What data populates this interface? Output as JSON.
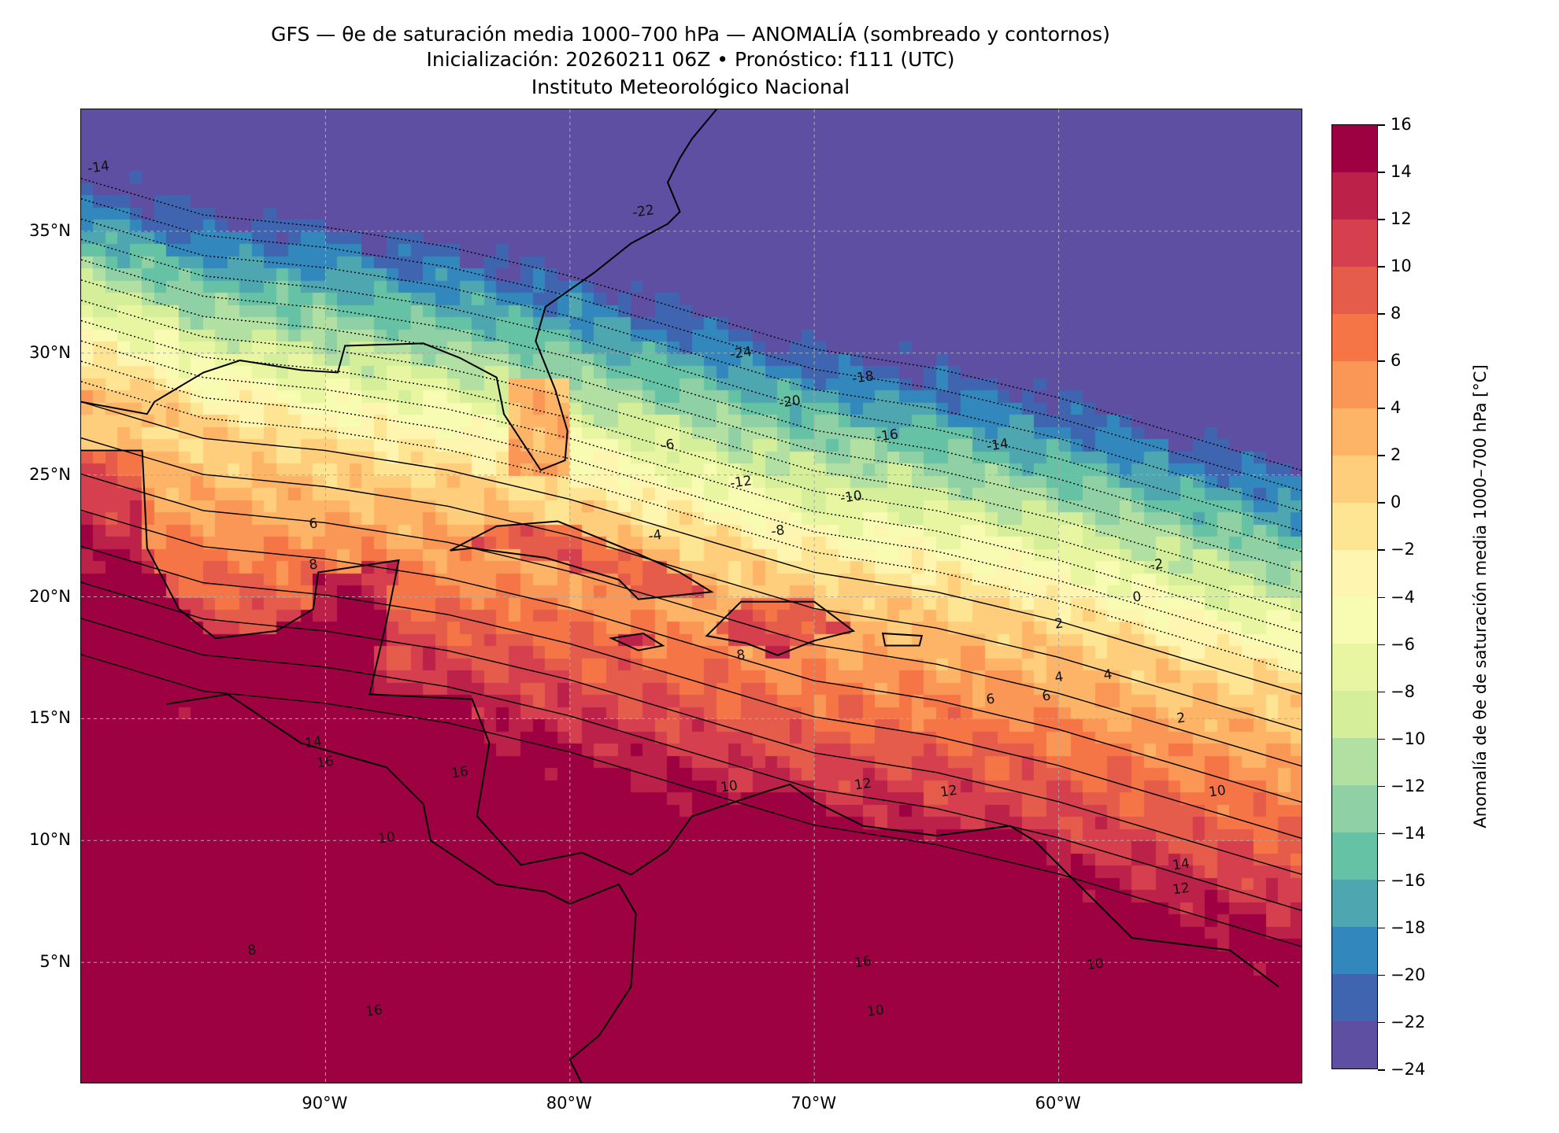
{
  "title": {
    "line1": "GFS — θe de saturación media 1000–700 hPa — ANOMALÍA (sombreado y contornos)",
    "line2": "Inicialización: 20260211 06Z   •   Pronóstico: f111 (UTC)",
    "line3": "Instituto Meteorológico Nacional"
  },
  "axes": {
    "lat_labels": [
      "35°N",
      "30°N",
      "25°N",
      "20°N",
      "15°N",
      "10°N",
      "5°N"
    ],
    "lon_labels": [
      "90°W",
      "80°W",
      "70°W",
      "60°W"
    ],
    "extent": {
      "lon_min": -100,
      "lon_max": -50,
      "lat_min": 0,
      "lat_max": 40
    }
  },
  "colorbar": {
    "label": "Anomalía de θe de saturación media 1000–700 hPa [°C]",
    "ticks": [
      "−24",
      "−22",
      "−20",
      "−18",
      "−16",
      "−14",
      "−12",
      "−10",
      "−8",
      "−6",
      "−4",
      "−2",
      "0",
      "2",
      "4",
      "6",
      "8",
      "10",
      "12",
      "14",
      "16"
    ],
    "colors": [
      "#5e4fa2",
      "#4065b0",
      "#3288bd",
      "#4ea6b1",
      "#66c2a5",
      "#8fd1a4",
      "#b2e0a2",
      "#d4ee9a",
      "#e9f6a1",
      "#f8fbb2",
      "#fef6b0",
      "#fee593",
      "#fece7c",
      "#fdb466",
      "#fa9656",
      "#f57547",
      "#e55c4b",
      "#d6404e",
      "#bb2149",
      "#9e0142"
    ]
  },
  "contour_labels": [
    "-22",
    "-24",
    "-20",
    "-18",
    "-16",
    "-14",
    "-12",
    "-10",
    "-8",
    "-6",
    "-4",
    "-2",
    "0",
    "2",
    "4",
    "6",
    "8",
    "10",
    "12",
    "14",
    "16",
    "-14",
    "6",
    "8",
    "10",
    "12",
    "16",
    "2",
    "4",
    "6",
    "10",
    "16",
    "14",
    "12",
    "10",
    "8",
    "16",
    "10"
  ]
}
